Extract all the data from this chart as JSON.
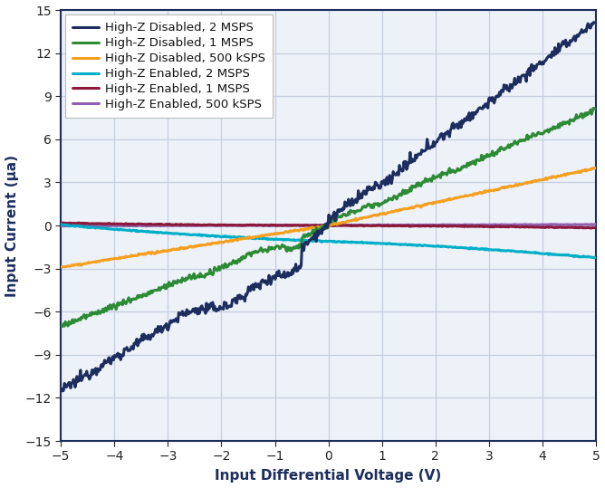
{
  "title": "",
  "xlabel": "Input Differential Voltage (V)",
  "ylabel": "Input Current (μa)",
  "xlim": [
    -5,
    5
  ],
  "ylim": [
    -15,
    15
  ],
  "xticks": [
    -5,
    -4,
    -3,
    -2,
    -1,
    0,
    1,
    2,
    3,
    4,
    5
  ],
  "yticks": [
    -15,
    -12,
    -9,
    -6,
    -3,
    0,
    3,
    6,
    9,
    12,
    15
  ],
  "background_color": "#ffffff",
  "plot_bg_color": "#edf1f8",
  "grid_color": "#c5cfe0",
  "series": [
    {
      "label": "High-Z Disabled, 2 MSPS",
      "color": "#1c2d5e",
      "linewidth": 2.2
    },
    {
      "label": "High-Z Disabled, 1 MSPS",
      "color": "#2e8b35",
      "linewidth": 2.2
    },
    {
      "label": "High-Z Disabled, 500 kSPS",
      "color": "#f5a020",
      "linewidth": 2.2
    },
    {
      "label": "High-Z Enabled, 2 MSPS",
      "color": "#00aec8",
      "linewidth": 2.2
    },
    {
      "label": "High-Z Enabled, 1 MSPS",
      "color": "#8b1a3a",
      "linewidth": 2.2
    },
    {
      "label": "High-Z Enabled, 500 kSPS",
      "color": "#9060b0",
      "linewidth": 2.2
    }
  ],
  "legend_loc": "upper left",
  "legend_fontsize": 9.5,
  "axis_fontsize": 11,
  "tick_fontsize": 10
}
